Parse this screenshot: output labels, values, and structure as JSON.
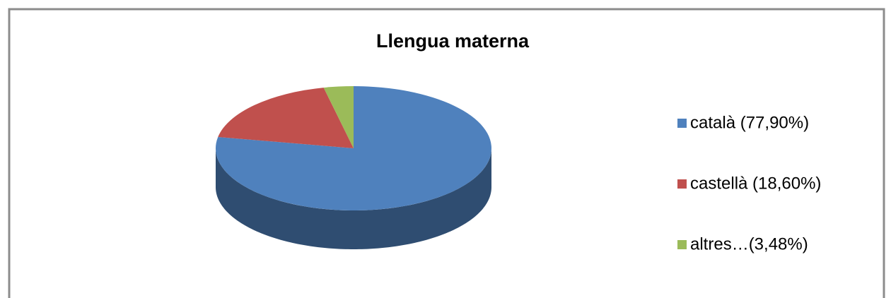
{
  "chart_data": {
    "type": "pie",
    "title": "Llengua materna",
    "categories": [
      "català (77,90%)",
      "castellà (18,60%)",
      "altres…(3,48%)"
    ],
    "values": [
      77.9,
      18.6,
      3.48
    ],
    "colors": [
      "#4f81bd",
      "#c0504d",
      "#9bbb59"
    ],
    "legend": "right"
  }
}
